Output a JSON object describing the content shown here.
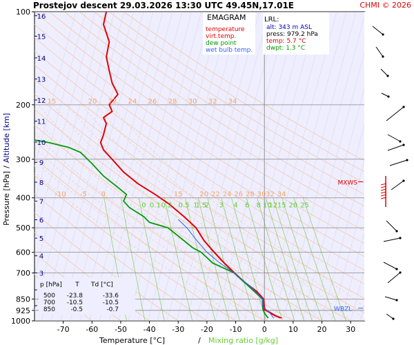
{
  "header": {
    "title": "Prostejov   descent   29.03.2026 13:30 UTC  49.45N,17.01E",
    "copyright": "CHMI © 2026"
  },
  "chart_data": {
    "type": "line",
    "title": "EMAGRAM",
    "xlabel": "Temperature [°C]",
    "xlabel_sep": "/",
    "xlabel2": "Mixing ratio [g/kg]",
    "ylabel": "Pressure [hPa]",
    "ylabel_sep": "/",
    "ylabel2": "Altitude [km]",
    "xlim": [
      -80,
      35
    ],
    "ylim": [
      1000,
      100
    ],
    "y_scale": "log",
    "x_ticks": [
      -70,
      -60,
      -50,
      -40,
      -30,
      -20,
      -10,
      0,
      10,
      20,
      30
    ],
    "y_ticks": [
      100,
      200,
      300,
      400,
      500,
      600,
      700,
      850,
      925,
      1000
    ],
    "altitude_ticks": [
      {
        "km": "1",
        "p": 893
      },
      {
        "km": "2",
        "p": 794
      },
      {
        "km": "3",
        "p": 700
      },
      {
        "km": "4",
        "p": 616
      },
      {
        "km": "5",
        "p": 540
      },
      {
        "km": "6",
        "p": 471
      },
      {
        "km": "7",
        "p": 410
      },
      {
        "km": "8",
        "p": 356
      },
      {
        "km": "9",
        "p": 307
      },
      {
        "km": "10",
        "p": 264
      },
      {
        "km": "11",
        "p": 226
      },
      {
        "km": "12",
        "p": 193
      },
      {
        "km": "13",
        "p": 165
      },
      {
        "km": "14",
        "p": 141
      },
      {
        "km": "15",
        "p": 120
      },
      {
        "km": "16",
        "p": 103
      }
    ],
    "legend": [
      {
        "name": "temperature",
        "color": "#e00000"
      },
      {
        "name": "virt.temp.",
        "color": "#e00000"
      },
      {
        "name": "dew point",
        "color": "#009900"
      },
      {
        "name": "wet bulb temp.",
        "color": "#3060ff"
      }
    ],
    "lrl": {
      "title": "LRL:",
      "alt": "alt: 343 m ASL",
      "press": "press: 979.2 hPa",
      "temp": "temp: 5.7 °C",
      "dwpt": "dwpt: 1.3 °C"
    },
    "level_table": {
      "headers": [
        "p [hPa]",
        "T",
        "Td [°C]"
      ],
      "rows": [
        {
          "p": "500",
          "t": "-23.8",
          "td": "-33.6"
        },
        {
          "p": "700",
          "t": "-10.5",
          "td": "-10.5"
        },
        {
          "p": "850",
          "t": "-0.5",
          "td": "-0.7"
        }
      ]
    },
    "markers": [
      {
        "label": "MXWS",
        "p": 355
      },
      {
        "label": "WBZL",
        "p": 910
      }
    ],
    "mixing_ratio_labels": [
      "0",
      "0.1",
      "0.2",
      "0.5",
      "1",
      "1.5",
      "2",
      "3",
      "4",
      "6",
      "8",
      "10",
      "12",
      "15",
      "20",
      "25"
    ],
    "dry_adiabat_labels_200": [
      "15",
      "20",
      "22",
      "24",
      "26",
      "28",
      "30",
      "32",
      "34"
    ],
    "dry_adiabat_labels_400": [
      "-10",
      "-5",
      "0",
      "15",
      "20",
      "22",
      "24",
      "26",
      "28",
      "30",
      "32",
      "34"
    ],
    "series": [
      {
        "name": "temperature",
        "color": "#e00000",
        "points": [
          [
            5.7,
            979
          ],
          [
            3.5,
            960
          ],
          [
            1.0,
            930
          ],
          [
            0,
            920
          ],
          [
            -0.3,
            900
          ],
          [
            -0.5,
            850
          ],
          [
            -3,
            800
          ],
          [
            -7,
            750
          ],
          [
            -10.5,
            700
          ],
          [
            -14,
            650
          ],
          [
            -17.5,
            600
          ],
          [
            -21,
            550
          ],
          [
            -23.8,
            500
          ],
          [
            -28,
            460
          ],
          [
            -33,
            420
          ],
          [
            -38,
            390
          ],
          [
            -44,
            360
          ],
          [
            -49,
            330
          ],
          [
            -53,
            300
          ],
          [
            -56,
            280
          ],
          [
            -57,
            265
          ],
          [
            -56,
            250
          ],
          [
            -55,
            230
          ],
          [
            -56,
            220
          ],
          [
            -53,
            210
          ],
          [
            -54,
            200
          ],
          [
            -51,
            185
          ],
          [
            -53,
            170
          ],
          [
            -54,
            155
          ],
          [
            -55,
            140
          ],
          [
            -54,
            125
          ],
          [
            -56,
            110
          ],
          [
            -55,
            100
          ]
        ]
      },
      {
        "name": "virt.temp.",
        "color": "#e00000",
        "points": [
          [
            6.2,
            979
          ],
          [
            3.9,
            960
          ],
          [
            1.4,
            930
          ],
          [
            0.4,
            920
          ],
          [
            0.1,
            900
          ],
          [
            -0.1,
            850
          ],
          [
            -2.7,
            800
          ],
          [
            -6.7,
            750
          ],
          [
            -10.2,
            700
          ],
          [
            -13.8,
            650
          ],
          [
            -17.3,
            600
          ],
          [
            -20.9,
            550
          ],
          [
            -23.7,
            500
          ]
        ]
      },
      {
        "name": "dew point",
        "color": "#009900",
        "points": [
          [
            1.3,
            979
          ],
          [
            0.2,
            950
          ],
          [
            -0.5,
            920
          ],
          [
            -0.6,
            900
          ],
          [
            -0.7,
            850
          ],
          [
            -5,
            780
          ],
          [
            -10.5,
            700
          ],
          [
            -18,
            650
          ],
          [
            -22,
            600
          ],
          [
            -25,
            580
          ],
          [
            -28,
            550
          ],
          [
            -33.6,
            500
          ],
          [
            -40,
            480
          ],
          [
            -42,
            460
          ],
          [
            -47,
            430
          ],
          [
            -49,
            410
          ],
          [
            -48,
            390
          ],
          [
            -51,
            370
          ],
          [
            -56,
            340
          ],
          [
            -60,
            310
          ],
          [
            -64,
            285
          ],
          [
            -68,
            275
          ],
          [
            -75,
            265
          ],
          [
            -80,
            260
          ]
        ]
      },
      {
        "name": "wet bulb temp.",
        "color": "#3060ff",
        "points": [
          [
            3.2,
            979
          ],
          [
            1.8,
            940
          ],
          [
            -0.6,
            900
          ],
          [
            -0.6,
            850
          ],
          [
            -4.5,
            780
          ],
          [
            -10.5,
            700
          ],
          [
            -15.5,
            650
          ],
          [
            -20,
            600
          ],
          [
            -23.5,
            550
          ],
          [
            -27,
            500
          ],
          [
            -30,
            470
          ]
        ]
      }
    ]
  }
}
